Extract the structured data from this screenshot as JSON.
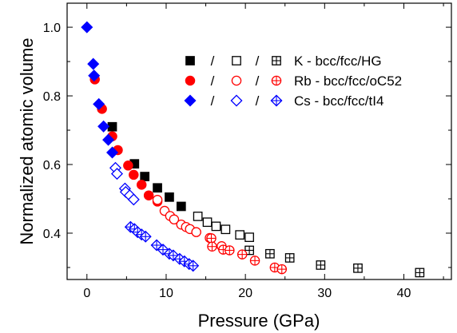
{
  "chart_data": {
    "type": "scatter",
    "xlabel": "Pressure (GPa)",
    "ylabel": "Normalized atomic volume",
    "xlim": [
      -2.5,
      46
    ],
    "ylim": [
      0.265,
      1.07
    ],
    "xticks": [
      0,
      10,
      20,
      30,
      40
    ],
    "yticks": [
      0.4,
      0.6,
      0.8,
      1.0
    ],
    "xtick_labels": [
      "0",
      "10",
      "20",
      "30",
      "40"
    ],
    "ytick_labels": [
      "0.4",
      "0.6",
      "0.8",
      "1.0"
    ],
    "grid": false,
    "legend_position": "top-right",
    "legend": [
      {
        "label": "K   - bcc/fcc/HG",
        "color": "#000000",
        "separator": "/"
      },
      {
        "label": "Rb - bcc/fcc/oC52",
        "color": "#ff0000",
        "separator": "/"
      },
      {
        "label": "Cs  - bcc/fcc/tI4",
        "color": "#0000ff",
        "separator": "/"
      }
    ],
    "series": [
      {
        "name": "K bcc",
        "color": "#000000",
        "shape": "square",
        "fill": "solid",
        "points": [
          [
            3.2,
            0.71
          ],
          [
            6.0,
            0.602
          ],
          [
            7.3,
            0.565
          ],
          [
            8.9,
            0.532
          ],
          [
            10.4,
            0.505
          ],
          [
            11.9,
            0.478
          ]
        ]
      },
      {
        "name": "K fcc",
        "color": "#000000",
        "shape": "square",
        "fill": "open",
        "points": [
          [
            14.0,
            0.449
          ],
          [
            15.2,
            0.432
          ],
          [
            16.3,
            0.42
          ],
          [
            17.5,
            0.411
          ],
          [
            19.3,
            0.395
          ],
          [
            20.5,
            0.388
          ]
        ]
      },
      {
        "name": "K HG",
        "color": "#000000",
        "shape": "square",
        "fill": "cross",
        "points": [
          [
            20.5,
            0.35
          ],
          [
            23.1,
            0.34
          ],
          [
            25.6,
            0.328
          ],
          [
            29.5,
            0.307
          ],
          [
            34.2,
            0.298
          ],
          [
            42.0,
            0.285
          ]
        ]
      },
      {
        "name": "Rb bcc",
        "color": "#ff0000",
        "shape": "circle",
        "fill": "solid",
        "points": [
          [
            1.0,
            0.848
          ],
          [
            1.9,
            0.762
          ],
          [
            3.2,
            0.682
          ],
          [
            3.9,
            0.642
          ],
          [
            5.2,
            0.597
          ],
          [
            5.9,
            0.57
          ],
          [
            6.9,
            0.541
          ],
          [
            7.8,
            0.51
          ],
          [
            8.9,
            0.492
          ]
        ]
      },
      {
        "name": "Rb fcc",
        "color": "#ff0000",
        "shape": "circle",
        "fill": "open",
        "points": [
          [
            8.9,
            0.497
          ],
          [
            9.8,
            0.465
          ],
          [
            10.5,
            0.45
          ],
          [
            11.0,
            0.44
          ],
          [
            11.9,
            0.425
          ],
          [
            12.5,
            0.418
          ],
          [
            13.0,
            0.412
          ],
          [
            13.8,
            0.403
          ],
          [
            15.5,
            0.386
          ],
          [
            17.0,
            0.362
          ]
        ]
      },
      {
        "name": "Rb oC52",
        "color": "#ff0000",
        "shape": "circle",
        "fill": "cross",
        "points": [
          [
            15.7,
            0.385
          ],
          [
            15.8,
            0.361
          ],
          [
            17.2,
            0.352
          ],
          [
            18.0,
            0.35
          ],
          [
            19.6,
            0.338
          ],
          [
            21.2,
            0.32
          ],
          [
            23.7,
            0.3
          ],
          [
            24.6,
            0.295
          ]
        ]
      },
      {
        "name": "Cs bcc",
        "color": "#0000ff",
        "shape": "diamond",
        "fill": "solid",
        "points": [
          [
            0.0,
            1.0
          ],
          [
            0.8,
            0.893
          ],
          [
            0.9,
            0.859
          ],
          [
            1.5,
            0.776
          ],
          [
            2.1,
            0.711
          ],
          [
            2.7,
            0.672
          ],
          [
            3.2,
            0.635
          ]
        ]
      },
      {
        "name": "Cs fcc",
        "color": "#0000ff",
        "shape": "diamond",
        "fill": "open",
        "points": [
          [
            3.6,
            0.59
          ],
          [
            3.8,
            0.573
          ],
          [
            4.8,
            0.53
          ],
          [
            4.9,
            0.52
          ],
          [
            5.4,
            0.51
          ],
          [
            5.9,
            0.498
          ]
        ]
      },
      {
        "name": "Cs tI4",
        "color": "#0000ff",
        "shape": "diamond",
        "fill": "cross",
        "points": [
          [
            5.5,
            0.418
          ],
          [
            6.0,
            0.412
          ],
          [
            6.4,
            0.403
          ],
          [
            6.9,
            0.396
          ],
          [
            7.4,
            0.39
          ],
          [
            8.8,
            0.365
          ],
          [
            9.6,
            0.352
          ],
          [
            10.4,
            0.34
          ],
          [
            10.9,
            0.335
          ],
          [
            11.7,
            0.325
          ],
          [
            12.3,
            0.318
          ],
          [
            12.9,
            0.31
          ],
          [
            13.4,
            0.305
          ]
        ]
      }
    ]
  }
}
